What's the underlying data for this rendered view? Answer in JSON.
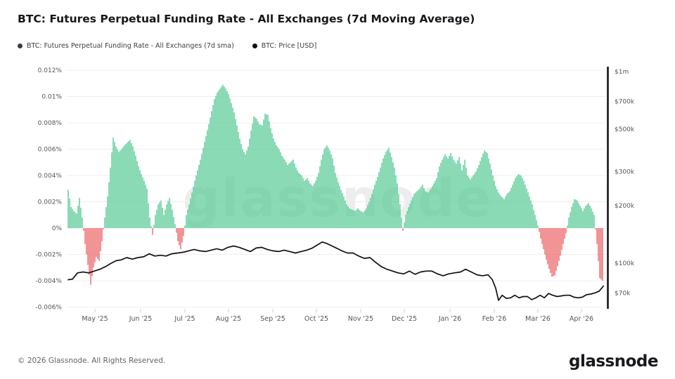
{
  "title": "BTC: Futures Perpetual Funding Rate - All Exchanges (7d Moving Average)",
  "legend": [
    {
      "label": "BTC: Futures Perpetual Funding Rate - All Exchanges (7d sma)",
      "dot_color": "#343a46"
    },
    {
      "label": "BTC: Price [USD]",
      "dot_color": "#101014"
    }
  ],
  "watermark": "glassnode",
  "footer": {
    "copyright": "© 2026 Glassnode. All Rights Reserved.",
    "brand": "glassnode"
  },
  "colors": {
    "positive_bar": "#4dc690",
    "negative_bar": "#eb5a5e",
    "price_line": "#101014",
    "grid": "#f2eded",
    "axis_text": "#54555c",
    "right_axis_line": "#14151a",
    "tick_mark": "#cfcfcf",
    "watermark": "#ededed"
  },
  "chart_data": {
    "type": "bar",
    "note": "bar series = funding rate % (left axis, linear), line series = BTC price USD (right axis, log). Index i is the shared time coordinate, ~2 days per step, Apr 2025 to mid May 2026.",
    "x_axis": {
      "ticks": [
        {
          "label": "May '25",
          "i": 9.5
        },
        {
          "label": "Jun '25",
          "i": 25.75
        },
        {
          "label": "Jul '25",
          "i": 41.5
        },
        {
          "label": "Aug '25",
          "i": 57
        },
        {
          "label": "Sep '25",
          "i": 72.75
        },
        {
          "label": "Oct '25",
          "i": 88.25
        },
        {
          "label": "Nov '25",
          "i": 104
        },
        {
          "label": "Dec '25",
          "i": 119.5
        },
        {
          "label": "Jan '26",
          "i": 135.75
        },
        {
          "label": "Feb '26",
          "i": 151.5
        },
        {
          "label": "Mar '26",
          "i": 167
        },
        {
          "label": "Apr '26",
          "i": 182.5
        }
      ]
    },
    "left_axis": {
      "unit": "%",
      "range": [
        -0.00614,
        0.01227
      ],
      "grid": true,
      "ticks": [
        {
          "label": "0.012%",
          "value": 0.012
        },
        {
          "label": "0.01%",
          "value": 0.01
        },
        {
          "label": "0.008%",
          "value": 0.008
        },
        {
          "label": "0.006%",
          "value": 0.006
        },
        {
          "label": "0.004%",
          "value": 0.004
        },
        {
          "label": "0.002%",
          "value": 0.002
        },
        {
          "label": "0%",
          "value": 0
        },
        {
          "label": "-0.002%",
          "value": -0.002
        },
        {
          "label": "-0.004%",
          "value": -0.004
        },
        {
          "label": "-0.006%",
          "value": -0.006
        }
      ]
    },
    "right_axis": {
      "unit": "USD",
      "scale": "log",
      "range": [
        58000,
        1060000
      ],
      "ticks": [
        {
          "label": "$1m",
          "value": 1000000
        },
        {
          "label": "$700k",
          "value": 700000
        },
        {
          "label": "$500k",
          "value": 500000
        },
        {
          "label": "$300k",
          "value": 300000
        },
        {
          "label": "$200k",
          "value": 200000
        },
        {
          "label": "$100k",
          "value": 100000
        },
        {
          "label": "$70k",
          "value": 70000
        }
      ]
    },
    "series": [
      {
        "name": "BTC: Futures Perpetual Funding Rate - All Exchanges (7d sma)",
        "type": "bar",
        "axis": "left",
        "unit": "%",
        "values_pct": [
          0.0029,
          0.0016,
          0.0013,
          0.0011,
          0.0023,
          0.0008,
          -0.0012,
          -0.0028,
          -0.0043,
          -0.003,
          -0.0022,
          -0.0025,
          -0.001,
          0.0008,
          0.0024,
          0.0046,
          0.0069,
          0.0062,
          0.0058,
          0.006,
          0.0063,
          0.0065,
          0.0067,
          0.0062,
          0.0055,
          0.0047,
          0.0041,
          0.0036,
          0.003,
          0.0008,
          -0.0005,
          0.001,
          0.0018,
          0.0021,
          0.001,
          0.0018,
          0.0023,
          0.0014,
          0.0003,
          -0.001,
          -0.0016,
          -0.0006,
          0.001,
          0.0018,
          0.0027,
          0.0036,
          0.0044,
          0.0052,
          0.0061,
          0.007,
          0.0079,
          0.0089,
          0.0098,
          0.0103,
          0.0106,
          0.0109,
          0.0106,
          0.0102,
          0.0095,
          0.0088,
          0.0078,
          0.0068,
          0.006,
          0.0056,
          0.0062,
          0.0074,
          0.0085,
          0.0083,
          0.0079,
          0.0078,
          0.0087,
          0.0086,
          0.0076,
          0.0068,
          0.0063,
          0.006,
          0.0055,
          0.0052,
          0.0048,
          0.005,
          0.0052,
          0.0046,
          0.0042,
          0.004,
          0.0036,
          0.0038,
          0.0034,
          0.0032,
          0.0036,
          0.0042,
          0.0052,
          0.006,
          0.0063,
          0.0059,
          0.0053,
          0.0042,
          0.0035,
          0.0029,
          0.0024,
          0.0018,
          0.0015,
          0.0014,
          0.0013,
          0.0015,
          0.0013,
          0.0012,
          0.0015,
          0.002,
          0.0026,
          0.0033,
          0.0039,
          0.0046,
          0.0053,
          0.0058,
          0.0061,
          0.0054,
          0.0046,
          0.0034,
          0.0018,
          -0.0002,
          0.001,
          0.0016,
          0.0021,
          0.0026,
          0.0028,
          0.003,
          0.0033,
          0.0028,
          0.0027,
          0.003,
          0.0034,
          0.0038,
          0.0047,
          0.0052,
          0.0056,
          0.0053,
          0.0057,
          0.0052,
          0.0049,
          0.0054,
          0.0044,
          0.0052,
          0.004,
          0.0037,
          0.004,
          0.0043,
          0.0048,
          0.0054,
          0.0059,
          0.0057,
          0.0049,
          0.004,
          0.0032,
          0.0027,
          0.0024,
          0.0022,
          0.0026,
          0.0028,
          0.0033,
          0.0038,
          0.0041,
          0.004,
          0.0036,
          0.003,
          0.0024,
          0.0018,
          0.001,
          0.0002,
          -0.0008,
          -0.0016,
          -0.0024,
          -0.0031,
          -0.0037,
          -0.0036,
          -0.0029,
          -0.0021,
          -0.0012,
          -0.0004,
          0.0008,
          0.0016,
          0.0022,
          0.0021,
          0.0017,
          0.0013,
          0.0017,
          0.0019,
          0.0015,
          0.001,
          -0.0012,
          -0.0038,
          -0.004
        ]
      },
      {
        "name": "BTC: Price [USD]",
        "type": "line",
        "axis": "right",
        "unit": "USD",
        "points_usd": [
          [
            0,
            82000
          ],
          [
            1.5,
            82500
          ],
          [
            3.3,
            89000
          ],
          [
            5.3,
            90000
          ],
          [
            7.3,
            89000
          ],
          [
            9.3,
            91000
          ],
          [
            11.3,
            93000
          ],
          [
            13.3,
            96000
          ],
          [
            15.3,
            100000
          ],
          [
            17,
            103000
          ],
          [
            18.8,
            104000
          ],
          [
            20.8,
            107000
          ],
          [
            22.8,
            105000
          ],
          [
            24.8,
            107000
          ],
          [
            26.8,
            108000
          ],
          [
            28.8,
            112000
          ],
          [
            30.8,
            109000
          ],
          [
            32.8,
            110000
          ],
          [
            34.8,
            109000
          ],
          [
            36.8,
            112000
          ],
          [
            38.8,
            113000
          ],
          [
            40.8,
            114000
          ],
          [
            42.8,
            116000
          ],
          [
            44.8,
            118000
          ],
          [
            46.8,
            116000
          ],
          [
            48.8,
            115000
          ],
          [
            50.8,
            117000
          ],
          [
            52.8,
            119000
          ],
          [
            54.8,
            117000
          ],
          [
            56.8,
            121000
          ],
          [
            58.8,
            123000
          ],
          [
            60.8,
            121000
          ],
          [
            62.8,
            118000
          ],
          [
            64.8,
            115000
          ],
          [
            66.8,
            120000
          ],
          [
            68.8,
            121000
          ],
          [
            70.8,
            118000
          ],
          [
            72.8,
            116000
          ],
          [
            74.8,
            115000
          ],
          [
            76.8,
            117000
          ],
          [
            78.8,
            115000
          ],
          [
            80.8,
            113000
          ],
          [
            82.8,
            115000
          ],
          [
            84.8,
            117000
          ],
          [
            86.8,
            120000
          ],
          [
            88.8,
            125000
          ],
          [
            90.3,
            129000
          ],
          [
            91.8,
            127000
          ],
          [
            93.3,
            124000
          ],
          [
            95.3,
            120000
          ],
          [
            97.3,
            116000
          ],
          [
            99.3,
            113000
          ],
          [
            101.3,
            113000
          ],
          [
            103.3,
            109000
          ],
          [
            105.3,
            106000
          ],
          [
            107.3,
            107000
          ],
          [
            109.3,
            101000
          ],
          [
            111.3,
            96000
          ],
          [
            113.3,
            93000
          ],
          [
            115.3,
            91000
          ],
          [
            117.3,
            89000
          ],
          [
            119.3,
            88000
          ],
          [
            121.3,
            91000
          ],
          [
            123.3,
            87500
          ],
          [
            125.3,
            90000
          ],
          [
            127.3,
            91000
          ],
          [
            129.3,
            91000
          ],
          [
            131.3,
            88000
          ],
          [
            133.3,
            86000
          ],
          [
            135.3,
            88000
          ],
          [
            137.3,
            89000
          ],
          [
            139.5,
            90000
          ],
          [
            141.3,
            93000
          ],
          [
            143.3,
            90000
          ],
          [
            145.3,
            87000
          ],
          [
            147.3,
            86000
          ],
          [
            149.3,
            87000
          ],
          [
            150.8,
            82000
          ],
          [
            152,
            74000
          ],
          [
            153,
            64000
          ],
          [
            154.3,
            68000
          ],
          [
            155.8,
            65500
          ],
          [
            157.3,
            66000
          ],
          [
            158.8,
            68000
          ],
          [
            160.3,
            66000
          ],
          [
            161.8,
            67000
          ],
          [
            163.3,
            67000
          ],
          [
            164.8,
            64500
          ],
          [
            166.3,
            66000
          ],
          [
            167.8,
            68000
          ],
          [
            169.3,
            66000
          ],
          [
            170.8,
            69500
          ],
          [
            172.3,
            68000
          ],
          [
            173.8,
            67000
          ],
          [
            175.3,
            67500
          ],
          [
            176.8,
            68000
          ],
          [
            178.3,
            68000
          ],
          [
            179.8,
            66500
          ],
          [
            181.3,
            66000
          ],
          [
            182.8,
            66500
          ],
          [
            184.3,
            68500
          ],
          [
            185.8,
            69000
          ],
          [
            187.3,
            70000
          ],
          [
            188.8,
            71500
          ],
          [
            190.3,
            76000
          ]
        ]
      }
    ]
  }
}
